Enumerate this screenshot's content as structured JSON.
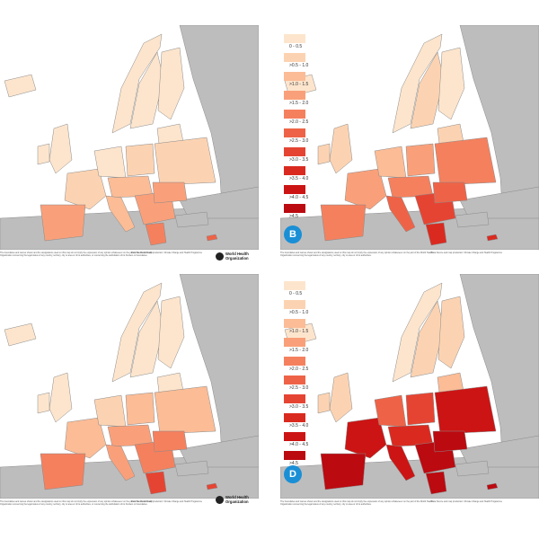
{
  "legend": [
    {
      "label": "0 - 0.5",
      "color": "#fde5cd"
    },
    {
      "label": ">0.5 - 1.0",
      "color": "#fcd3b2"
    },
    {
      "label": ">1.0 - 1.5",
      "color": "#fbbc96"
    },
    {
      "label": ">1.5 - 2.0",
      "color": "#f9a07a"
    },
    {
      "label": ">2.0 - 2.5",
      "color": "#f5805e"
    },
    {
      "label": ">2.5 - 3.0",
      "color": "#ee6347"
    },
    {
      "label": ">3.0 - 3.5",
      "color": "#e64433"
    },
    {
      "label": ">3.5 - 4.0",
      "color": "#da2a20"
    },
    {
      "label": ">4.0 - 4.5",
      "color": "#cc1414"
    },
    {
      "label": ">4.5",
      "color": "#bb0a10"
    }
  ],
  "panels": [
    {
      "letter": "",
      "show_who": true,
      "disclaimer": "The boundaries and names shown and the designations used on this map do not imply the expression of any opinion whatsoever on the part of the World Health Organization concerning the legal status of any country, territory, city or area or of its authorities, or concerning the delimitation of its frontiers or boundaries.",
      "source": "Data Source and map production: Climate Change and Health Programme"
    },
    {
      "letter": "B",
      "show_who": false,
      "disclaimer": "The boundaries and names shown and the designations used on this map do not imply the expression of any opinion whatsoever on the part of the World Health Organization concerning the legal status of any country, territory, city or area or of its authorities.",
      "source": "Data Source and map production: Climate Change and Health Programme"
    },
    {
      "letter": "",
      "show_who": true,
      "disclaimer": "The boundaries and names shown and the designations used on this map do not imply the expression of any opinion whatsoever on the part of the World Health Organization concerning the legal status of any country, territory, city or area or of its authorities, or concerning the delimitation of its frontiers or boundaries.",
      "source": "Data Source and map production: Climate Change and Health Programme"
    },
    {
      "letter": "D",
      "show_who": false,
      "disclaimer": "The boundaries and names shown and the designations used on this map do not imply the expression of any opinion whatsoever on the part of the World Health Organization concerning the legal status of any country, territory, city or area or of its authorities.",
      "source": "Data Source and map production: Climate Change and Health Programme"
    }
  ],
  "who_name_line1": "World Health",
  "who_name_line2": "Organization",
  "colors": {
    "land_outside": "#bdbdbd",
    "border": "#8a8a8a",
    "sea": "#ffffff",
    "badge": "#1a8fd6"
  }
}
